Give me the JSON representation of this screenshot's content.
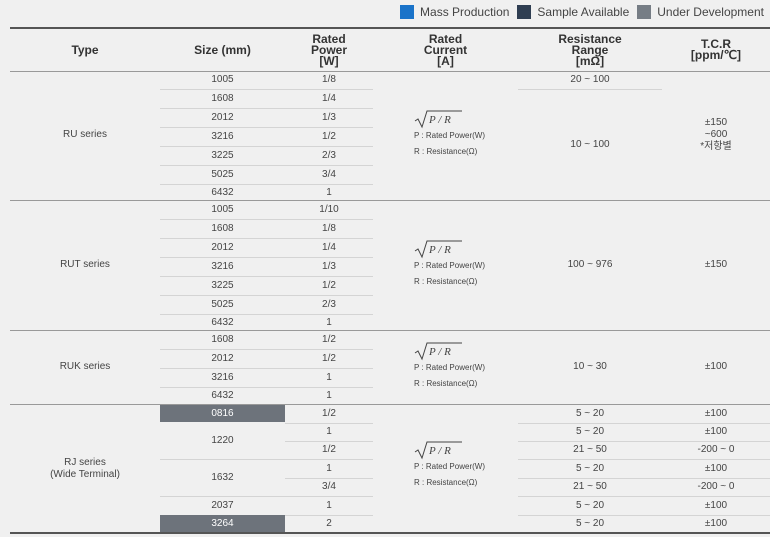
{
  "legend": [
    {
      "label": "Mass Production",
      "color": "#1a73c9"
    },
    {
      "label": "Sample Available",
      "color": "#2f3e52"
    },
    {
      "label": "Under Development",
      "color": "#767d85"
    }
  ],
  "headers": {
    "type": "Type",
    "size": "Size (mm)",
    "power_1": "Rated",
    "power_2": "Power",
    "power_3": "[W]",
    "current_1": "Rated",
    "current_2": "Current",
    "current_3": "[A]",
    "range_1": "Resistance",
    "range_2": "Range",
    "range_3": "[mΩ]",
    "tcr_1": "T.C.R",
    "tcr_2": "[ppm/℃]"
  },
  "formula": {
    "expression": "P / R",
    "power_note": "P : Rated Power(W)",
    "resistance_note": "R : Resistance(Ω)"
  },
  "ru": {
    "name": "RU series",
    "sizes": [
      "1005",
      "1608",
      "2012",
      "3216",
      "3225",
      "5025",
      "6432"
    ],
    "powers": [
      "1/8",
      "1/4",
      "1/3",
      "1/2",
      "2/3",
      "3/4",
      "1"
    ],
    "range_1": "20 ~ 100",
    "range_2": "10 ~ 100",
    "tcr_1": "±150",
    "tcr_2": "~600",
    "tcr_3": "*저항별"
  },
  "rut": {
    "name": "RUT series",
    "sizes": [
      "1005",
      "1608",
      "2012",
      "3216",
      "3225",
      "5025",
      "6432"
    ],
    "powers": [
      "1/10",
      "1/8",
      "1/4",
      "1/3",
      "1/2",
      "2/3",
      "1"
    ],
    "range": "100 ~ 976",
    "tcr": "±150"
  },
  "ruk": {
    "name": "RUK series",
    "sizes": [
      "1608",
      "2012",
      "3216",
      "6432"
    ],
    "powers": [
      "1/2",
      "1/2",
      "1",
      "1"
    ],
    "range": "10 ~ 30",
    "tcr": "±100"
  },
  "rj": {
    "name_1": "RJ series",
    "name_2": "(Wide Terminal)",
    "sizes": [
      "0816",
      "1220",
      "1632",
      "2037",
      "3264"
    ],
    "powers": [
      "1/2",
      "1",
      "1/2",
      "1",
      "3/4",
      "1",
      "2"
    ],
    "ranges": [
      "5 ~ 20",
      "5 ~ 20",
      "21 ~ 50",
      "5 ~ 20",
      "21 ~ 50",
      "5 ~ 20",
      "5 ~ 20"
    ],
    "tcrs": [
      "±100",
      "±100",
      "-200 ~ 0",
      "±100",
      "-200 ~ 0",
      "±100",
      "±100"
    ]
  }
}
